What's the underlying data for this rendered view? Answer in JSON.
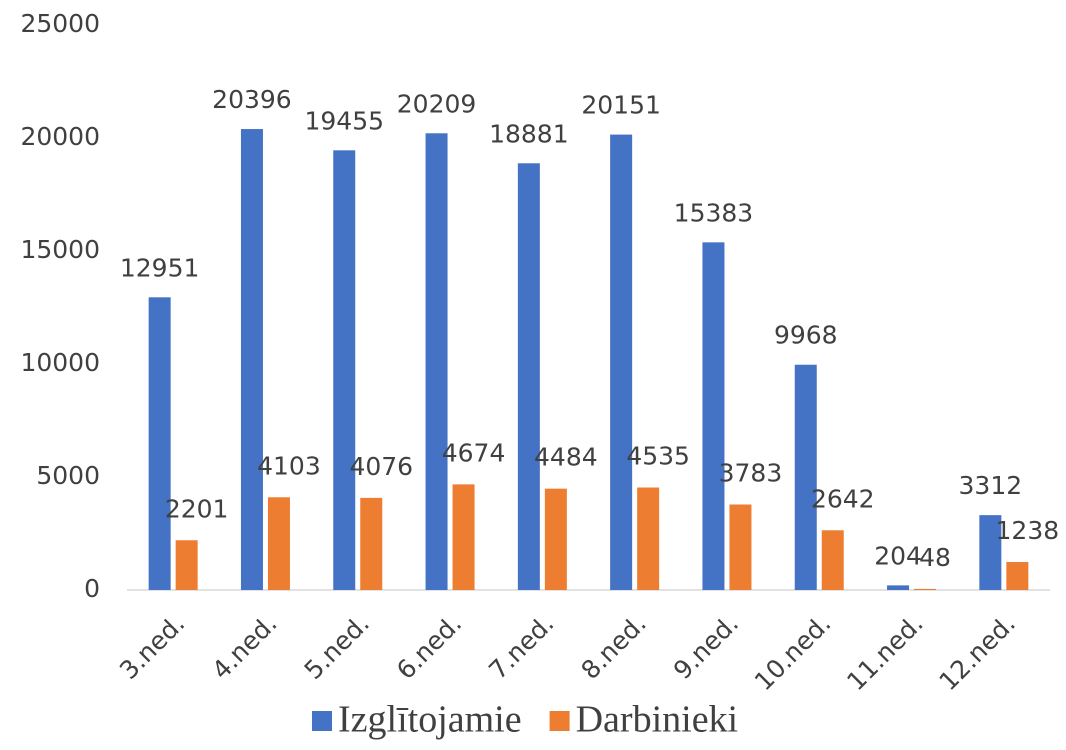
{
  "chart_data": {
    "type": "bar",
    "categories": [
      "3.ned.",
      "4.ned.",
      "5.ned.",
      "6.ned.",
      "7.ned.",
      "8.ned.",
      "9.ned.",
      "10.ned.",
      "11.ned.",
      "12.ned."
    ],
    "series": [
      {
        "name": "Izglītojamie",
        "color": "#4472c4",
        "values": [
          12951,
          20396,
          19455,
          20209,
          18881,
          20151,
          15383,
          9968,
          204,
          3312
        ]
      },
      {
        "name": "Darbinieki",
        "color": "#ed7d31",
        "values": [
          2201,
          4103,
          4076,
          4674,
          4484,
          4535,
          3783,
          2642,
          48,
          1238
        ]
      }
    ],
    "ylim": [
      0,
      25000
    ],
    "yticks": [
      0,
      5000,
      10000,
      15000,
      20000,
      25000
    ],
    "grid": false,
    "legend": "bottom"
  }
}
